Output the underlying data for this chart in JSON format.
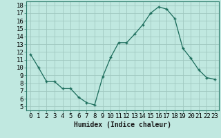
{
  "x": [
    0,
    1,
    2,
    3,
    4,
    5,
    6,
    7,
    8,
    9,
    10,
    11,
    12,
    13,
    14,
    15,
    16,
    17,
    18,
    19,
    20,
    21,
    22,
    23
  ],
  "y": [
    11.7,
    10.0,
    8.2,
    8.2,
    7.3,
    7.3,
    6.2,
    5.5,
    5.2,
    8.8,
    11.3,
    13.2,
    13.2,
    14.3,
    15.5,
    17.0,
    17.8,
    17.5,
    16.3,
    12.5,
    11.2,
    9.7,
    8.7,
    8.5
  ],
  "line_color": "#1a6b5a",
  "marker": "+",
  "marker_color": "#1a6b5a",
  "bg_color": "#c0e8e0",
  "plot_bg_color": "#c0e8e0",
  "grid_color": "#a0c8c0",
  "xlabel": "Humidex (Indice chaleur)",
  "ylabel_ticks": [
    5,
    6,
    7,
    8,
    9,
    10,
    11,
    12,
    13,
    14,
    15,
    16,
    17,
    18
  ],
  "xlim": [
    -0.5,
    23.5
  ],
  "ylim": [
    4.5,
    18.5
  ],
  "xlabel_fontsize": 7,
  "tick_fontsize": 6.5
}
